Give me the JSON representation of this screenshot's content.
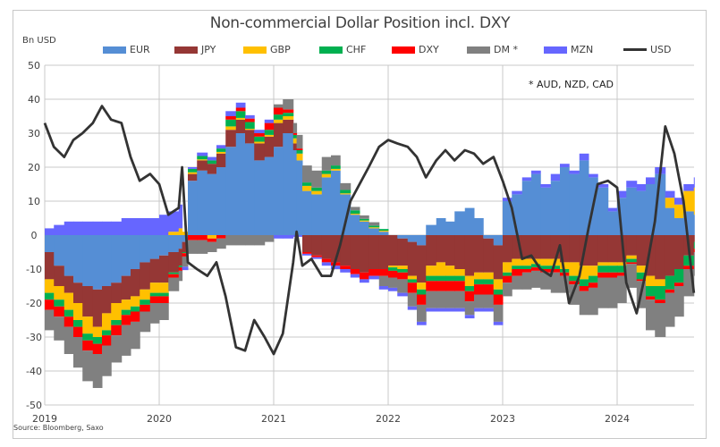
{
  "chart_data": {
    "type": "area",
    "stacked": true,
    "title": "Non-commercial Dollar Position incl. DXY",
    "ylabel": "Bn USD",
    "xlabel": "",
    "ylim": [
      -50,
      50
    ],
    "yticks": [
      50,
      40,
      30,
      20,
      10,
      0,
      -10,
      -20,
      -30,
      -40,
      -50
    ],
    "xlim": [
      2019.0,
      2024.67
    ],
    "xticks": [
      2019,
      2020,
      2021,
      2022,
      2023,
      2024
    ],
    "xtick_labels": [
      "2019",
      "2020",
      "2021",
      "2022",
      "2023",
      "2024"
    ],
    "grid": true,
    "legend_position": "top",
    "annotation": "* AUD, NZD,  CAD",
    "source": "Source: Bloomberg, Saxo",
    "x": [
      2019.0,
      2019.08,
      2019.17,
      2019.25,
      2019.33,
      2019.42,
      2019.5,
      2019.58,
      2019.67,
      2019.75,
      2019.83,
      2019.92,
      2020.0,
      2020.08,
      2020.17,
      2020.2,
      2020.25,
      2020.33,
      2020.42,
      2020.5,
      2020.58,
      2020.67,
      2020.75,
      2020.83,
      2020.92,
      2021.0,
      2021.08,
      2021.17,
      2021.2,
      2021.25,
      2021.33,
      2021.42,
      2021.5,
      2021.58,
      2021.67,
      2021.75,
      2021.83,
      2021.92,
      2022.0,
      2022.08,
      2022.17,
      2022.25,
      2022.33,
      2022.42,
      2022.5,
      2022.58,
      2022.67,
      2022.75,
      2022.83,
      2022.92,
      2023.0,
      2023.08,
      2023.17,
      2023.25,
      2023.33,
      2023.42,
      2023.5,
      2023.58,
      2023.67,
      2023.75,
      2023.83,
      2023.92,
      2024.0,
      2024.08,
      2024.17,
      2024.25,
      2024.33,
      2024.42,
      2024.5,
      2024.58,
      2024.67
    ],
    "series": [
      {
        "name": "EUR",
        "color": "#558ED5",
        "values": [
          -5,
          -9,
          -12,
          -14,
          -15,
          -16,
          -15,
          -14,
          -12,
          -10,
          -8,
          -7,
          -6,
          -5,
          -4,
          -2,
          16,
          19,
          18,
          20,
          26,
          30,
          27,
          22,
          23,
          26,
          30,
          25,
          22,
          13,
          12,
          17,
          19,
          12,
          6,
          4,
          2,
          1,
          0,
          -1,
          -2,
          -3,
          3,
          5,
          4,
          7,
          8,
          5,
          -1,
          -3,
          10,
          12,
          16,
          18,
          14,
          16,
          20,
          18,
          22,
          17,
          14,
          7,
          11,
          14,
          13,
          15,
          18,
          8,
          5,
          7,
          6
        ]
      },
      {
        "name": "JPY",
        "color": "#953735",
        "values": [
          -8,
          -6,
          -5,
          -6,
          -9,
          -11,
          -8,
          -6,
          -7,
          -8,
          -8,
          -7,
          -8,
          -6,
          -5,
          -3,
          2,
          3,
          3,
          4,
          5,
          4,
          4,
          5,
          6,
          7,
          4,
          2,
          0,
          -5,
          -6,
          -7,
          -8,
          -9,
          -10,
          -11,
          -10,
          -10,
          -9,
          -8,
          -10,
          -11,
          -9,
          -8,
          -9,
          -10,
          -12,
          -11,
          -10,
          -10,
          -8,
          -7,
          -7,
          -7,
          -7,
          -7,
          -8,
          -8,
          -9,
          -9,
          -8,
          -8,
          -8,
          -6,
          -9,
          -12,
          -13,
          -12,
          -10,
          -6,
          -2
        ]
      },
      {
        "name": "GBP",
        "color": "#FFC000",
        "values": [
          -4,
          -4,
          -5,
          -5,
          -5,
          -3,
          -5,
          -5,
          -3,
          -3,
          -3,
          -3,
          -3,
          1,
          2,
          1,
          0.5,
          0.3,
          -1,
          0.5,
          1,
          0.5,
          0.3,
          0.5,
          0.5,
          1,
          1,
          1.5,
          2,
          1.5,
          1,
          1,
          0.5,
          0.3,
          0.3,
          0.3,
          0.3,
          0.3,
          -0.5,
          -1,
          -1,
          -2,
          -3,
          -4,
          -3,
          -2,
          -3,
          -2,
          -2,
          -3,
          -3,
          -2,
          -2,
          -1.5,
          -2,
          -2,
          -2,
          -4,
          -4,
          -3,
          -1,
          -1,
          -1,
          -1,
          -2,
          -3,
          -2,
          3,
          4,
          6,
          8
        ]
      },
      {
        "name": "CHF",
        "color": "#00B050",
        "values": [
          -2,
          -2,
          -2,
          -2,
          -2,
          -2,
          -1.5,
          -1.5,
          -1.5,
          -1.5,
          -1.5,
          -1,
          -1,
          -0.5,
          -0.5,
          -0.3,
          1,
          1,
          1,
          1,
          2,
          2,
          2,
          1.5,
          1.5,
          1.5,
          1,
          1,
          1,
          1,
          1,
          1,
          1,
          1,
          1,
          0.5,
          0.5,
          0.5,
          -1,
          -1,
          -1,
          -1.5,
          -1.5,
          -1.5,
          -1.5,
          -1.5,
          -1.5,
          -1.5,
          -1.5,
          -1.5,
          -1,
          -1,
          -1,
          -1,
          -1,
          -1,
          -1,
          -1.5,
          -2,
          -2,
          -2,
          -2,
          -2,
          -1,
          -2,
          -3,
          -4,
          -4,
          -4,
          -3,
          -2
        ]
      },
      {
        "name": "DXY",
        "color": "#FF0000",
        "values": [
          -3,
          -3,
          -3,
          -3,
          -3,
          -3,
          -3,
          -3,
          -3,
          -3,
          -2,
          -2,
          -2,
          -1,
          -1,
          -1,
          -1.5,
          -1.5,
          -1,
          -1,
          1,
          1,
          1,
          1,
          2,
          2,
          1,
          0.5,
          0.5,
          -0.5,
          -0.5,
          -1,
          -1,
          -1,
          -1.5,
          -2,
          -2,
          -2,
          -2,
          -2,
          -3,
          -3,
          -3,
          -3,
          -3,
          -3,
          -3,
          -3,
          -3,
          -3,
          -2,
          -2,
          -1,
          -1,
          -1,
          -1,
          -1,
          -1,
          -1.5,
          -1.5,
          -1.5,
          -1.5,
          -1,
          -0.5,
          -0.5,
          -1,
          -1,
          -1,
          -1,
          -1,
          -1
        ]
      },
      {
        "name": "DM *",
        "color": "#808080",
        "values": [
          -6,
          -7,
          -8,
          -9,
          -9,
          -10,
          -9,
          -8,
          -9,
          -8,
          -6,
          -6,
          -5,
          -4,
          -3,
          -3,
          -4,
          -4,
          -3,
          -3,
          -3,
          -3,
          -3,
          -3,
          -2,
          1,
          3,
          3,
          4,
          5,
          5,
          4,
          3,
          2,
          1,
          1,
          1,
          -3,
          -3,
          -4,
          -4,
          -5,
          -5,
          -5,
          -5,
          -5,
          -4,
          -4,
          -4,
          -5,
          -4,
          -4,
          -5,
          -5,
          -5,
          -6,
          -5,
          -6,
          -7,
          -8,
          -9,
          -9,
          -8,
          -7,
          -8,
          -9,
          -10,
          -10,
          -9,
          -8,
          -7
        ]
      },
      {
        "name": "MZN",
        "color": "#6666FF",
        "values": [
          2,
          3,
          4,
          4,
          4,
          4,
          4,
          4,
          5,
          5,
          5,
          5,
          6,
          6,
          7,
          -1,
          0.5,
          1,
          1,
          1,
          1.5,
          1.5,
          1,
          1,
          1,
          -1,
          -1,
          -0.5,
          -0.5,
          -0.5,
          -0.5,
          -1,
          -1,
          -1,
          -1,
          -1,
          -1,
          -1,
          -1,
          -1,
          -1,
          -1,
          -1,
          -1,
          -1,
          -1,
          -1,
          -1,
          -1,
          -1,
          1,
          1,
          1,
          1,
          1,
          2,
          1,
          1,
          2,
          1,
          1,
          1,
          2,
          2,
          2,
          2,
          2,
          2,
          2,
          2,
          3
        ]
      },
      {
        "name": "USD",
        "color": "#333333",
        "type": "line",
        "values": [
          33,
          26,
          23,
          28,
          30,
          33,
          38,
          34,
          33,
          23,
          16,
          18,
          15,
          6,
          8,
          20,
          -8,
          -10,
          -12,
          -8,
          -18,
          -33,
          -34,
          -25,
          -30,
          -35,
          -29,
          -8,
          1,
          -9,
          -7,
          -12,
          -12,
          -3,
          10,
          15,
          20,
          26,
          28,
          27,
          26,
          23,
          17,
          22,
          25,
          22,
          25,
          24,
          21,
          23,
          16,
          8,
          -7,
          -6,
          -10,
          -12,
          -3,
          -20,
          -12,
          2,
          15,
          16,
          14,
          -14,
          -23,
          -11,
          4,
          32,
          24,
          10,
          -17
        ]
      }
    ]
  },
  "legend": {
    "items": [
      {
        "label": "EUR",
        "color": "#558ED5",
        "kind": "swatch"
      },
      {
        "label": "JPY",
        "color": "#953735",
        "kind": "swatch"
      },
      {
        "label": "GBP",
        "color": "#FFC000",
        "kind": "swatch"
      },
      {
        "label": "CHF",
        "color": "#00B050",
        "kind": "swatch"
      },
      {
        "label": "DXY",
        "color": "#FF0000",
        "kind": "swatch"
      },
      {
        "label": "DM *",
        "color": "#808080",
        "kind": "swatch"
      },
      {
        "label": "MZN",
        "color": "#6666FF",
        "kind": "swatch"
      },
      {
        "label": "USD",
        "color": "#333333",
        "kind": "line"
      }
    ]
  }
}
